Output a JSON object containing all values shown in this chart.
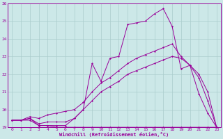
{
  "xlabel": "Windchill (Refroidissement éolien,°C)",
  "background_color": "#cce8e8",
  "grid_color": "#aacccc",
  "line_color": "#990099",
  "x_values": [
    0,
    1,
    2,
    3,
    4,
    5,
    6,
    7,
    8,
    9,
    10,
    11,
    12,
    13,
    14,
    15,
    16,
    17,
    18,
    19,
    20,
    21,
    22,
    23
  ],
  "series1": [
    19.4,
    19.4,
    19.4,
    19.1,
    19.1,
    19.0,
    19.0,
    19.0,
    19.0,
    19.0,
    19.0,
    19.0,
    19.0,
    19.0,
    19.0,
    19.0,
    19.0,
    19.0,
    19.0,
    19.0,
    19.0,
    19.0,
    19.0,
    19.0
  ],
  "series2": [
    19.4,
    19.4,
    19.5,
    19.2,
    19.3,
    19.3,
    19.3,
    19.5,
    20.0,
    20.5,
    21.0,
    21.3,
    21.6,
    22.0,
    22.2,
    22.4,
    22.6,
    22.8,
    23.0,
    22.9,
    22.5,
    22.0,
    21.0,
    19.0
  ],
  "series3": [
    19.4,
    19.4,
    19.6,
    19.5,
    19.7,
    19.8,
    19.9,
    20.0,
    20.4,
    21.0,
    21.5,
    21.8,
    22.2,
    22.6,
    22.9,
    23.1,
    23.3,
    23.5,
    23.7,
    23.0,
    22.5,
    21.8,
    20.5,
    19.0
  ],
  "series4": [
    19.4,
    19.4,
    19.5,
    19.1,
    19.1,
    19.1,
    19.1,
    19.5,
    20.0,
    22.6,
    21.6,
    22.9,
    23.0,
    24.8,
    24.9,
    25.0,
    25.4,
    25.7,
    24.7,
    22.3,
    22.5,
    20.9,
    19.8,
    19.0
  ],
  "xlim": [
    -0.5,
    23.5
  ],
  "ylim": [
    19,
    26
  ],
  "yticks": [
    19,
    20,
    21,
    22,
    23,
    24,
    25,
    26
  ],
  "xticks": [
    0,
    1,
    2,
    3,
    4,
    5,
    6,
    7,
    8,
    9,
    10,
    11,
    12,
    13,
    14,
    15,
    16,
    17,
    18,
    19,
    20,
    21,
    22,
    23
  ]
}
